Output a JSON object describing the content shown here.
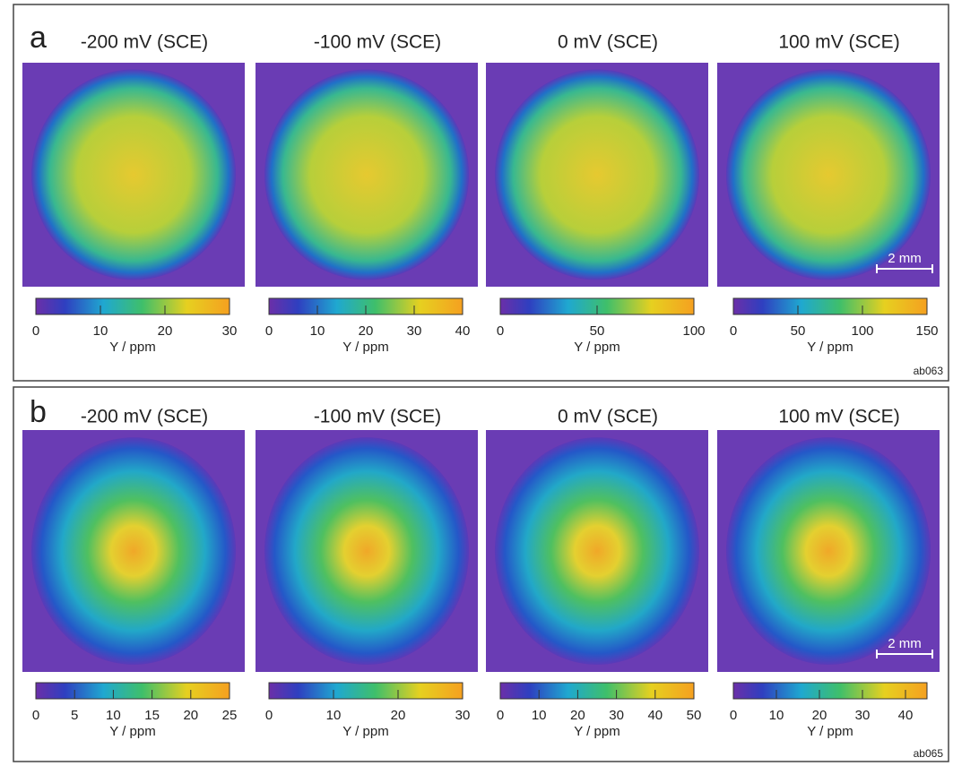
{
  "panels": [
    {
      "label": "a",
      "code": "ab063",
      "scale_bar": "2 mm",
      "maps": [
        {
          "title": "-200 mV (SCE)",
          "colorbar": {
            "lim": [
              0,
              30
            ],
            "ticks": [
              0,
              10,
              20,
              30
            ],
            "label": "Y / ppm"
          }
        },
        {
          "title": "-100 mV (SCE)",
          "colorbar": {
            "lim": [
              0,
              40
            ],
            "ticks": [
              0,
              10,
              20,
              30,
              40
            ],
            "label": "Y / ppm"
          }
        },
        {
          "title": "0 mV  (SCE)",
          "colorbar": {
            "lim": [
              0,
              100
            ],
            "ticks": [
              0,
              50,
              100
            ],
            "label": "Y / ppm"
          }
        },
        {
          "title": "100 mV  (SCE)",
          "colorbar": {
            "lim": [
              0,
              150
            ],
            "ticks": [
              0,
              50,
              100,
              150
            ],
            "label": "Y / ppm"
          }
        }
      ]
    },
    {
      "label": "b",
      "code": "ab065",
      "scale_bar": "2 mm",
      "maps": [
        {
          "title": "-200 mV (SCE)",
          "colorbar": {
            "lim": [
              0,
              25
            ],
            "ticks": [
              0,
              5,
              10,
              15,
              20,
              25
            ],
            "label": "Y / ppm"
          }
        },
        {
          "title": "-100 mV  (SCE)",
          "colorbar": {
            "lim": [
              0,
              30
            ],
            "ticks": [
              0,
              10,
              20,
              30
            ],
            "label": "Y / ppm"
          }
        },
        {
          "title": "0 mV  (SCE)",
          "colorbar": {
            "lim": [
              0,
              50
            ],
            "ticks": [
              0,
              10,
              20,
              30,
              40,
              50
            ],
            "label": "Y / ppm"
          }
        },
        {
          "title": "100 mV  (SCE)",
          "colorbar": {
            "lim": [
              0,
              45
            ],
            "ticks": [
              0,
              10,
              20,
              30,
              40
            ],
            "label": "Y / ppm"
          }
        }
      ]
    }
  ]
}
